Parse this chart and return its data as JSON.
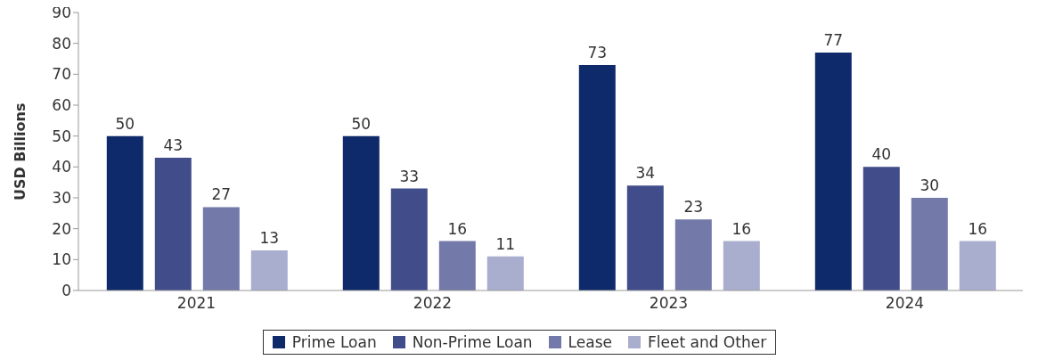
{
  "chart_data": {
    "type": "bar",
    "ylabel": "USD Billions",
    "categories": [
      "2021",
      "2022",
      "2023",
      "2024"
    ],
    "series": [
      {
        "name": "Prime Loan",
        "color": "#0f2a6b",
        "values": [
          50,
          50,
          73,
          77
        ]
      },
      {
        "name": "Non-Prime Loan",
        "color": "#414d8a",
        "values": [
          43,
          33,
          34,
          40
        ]
      },
      {
        "name": "Lease",
        "color": "#7379a8",
        "values": [
          27,
          16,
          23,
          30
        ]
      },
      {
        "name": "Fleet and Other",
        "color": "#a9adce",
        "values": [
          13,
          11,
          16,
          16
        ]
      }
    ],
    "ylim": [
      0,
      90
    ],
    "yticks": [
      0,
      10,
      20,
      30,
      40,
      50,
      60,
      70,
      80,
      90
    ],
    "data_labels": true,
    "legend": "bottom",
    "grid": false
  }
}
